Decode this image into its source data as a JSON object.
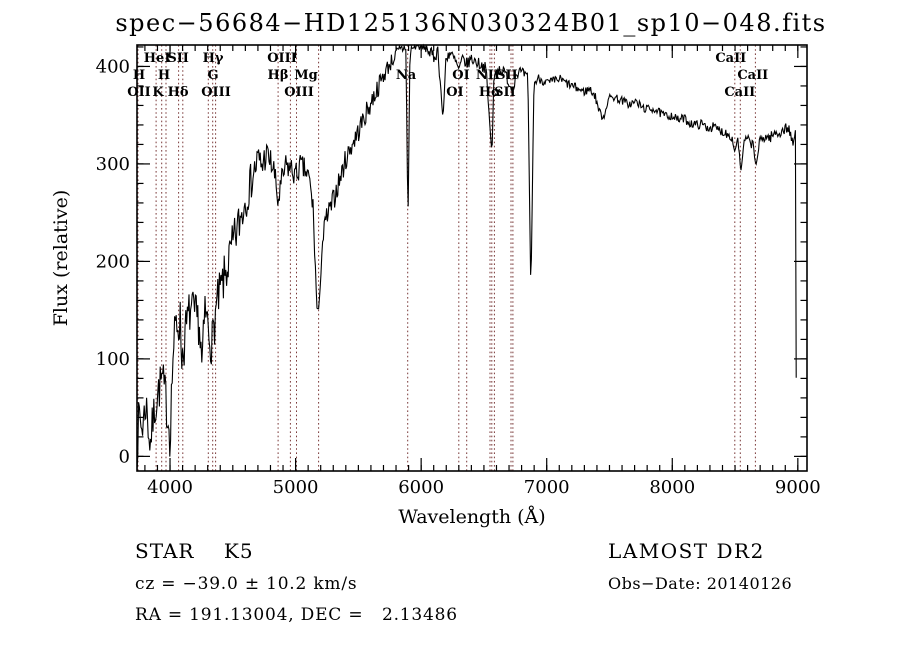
{
  "title": "spec−56684−HD125136N030324B01_sp10−048.fits",
  "annotations": {
    "class_line": "STAR    K5",
    "cz_line": "cz = −39.0 ± 10.2 km/s",
    "radec_line": "RA = 191.13004, DEC =   2.13486",
    "survey": "LAMOST DR2",
    "obsdate": "Obs−Date: 20140126"
  },
  "chart_data": {
    "type": "line",
    "title": "spec−56684−HD125136N030324B01_sp10−048.fits",
    "xlabel": "Wavelength (Å)",
    "ylabel": "Flux (relative)",
    "xlim": [
      3737,
      9073
    ],
    "ylim": [
      -15,
      422
    ],
    "x_major_ticks": [
      4000,
      5000,
      6000,
      7000,
      8000,
      9000
    ],
    "x_minor_step": 100,
    "y_major_ticks": [
      0,
      100,
      200,
      300,
      400
    ],
    "y_minor_step": 20,
    "grid": false,
    "legend": "none",
    "line_color": "#000000",
    "marker_color": "#7a3939",
    "spectral_line_markers": [
      3745,
      3889,
      3934,
      3968,
      4068,
      4102,
      4305,
      4340,
      4363,
      4861,
      4959,
      5007,
      5183,
      5893,
      6300,
      6363,
      6548,
      6563,
      6583,
      6716,
      6731,
      8498,
      8542,
      8662
    ],
    "spectral_line_labels": [
      {
        "text": "HeI",
        "row": 1,
        "wavelength": 3897
      },
      {
        "text": "SII",
        "row": 1,
        "wavelength": 4064
      },
      {
        "text": "Hγ",
        "row": 1,
        "wavelength": 4342
      },
      {
        "text": "OIII",
        "row": 1,
        "wavelength": 4892
      },
      {
        "text": "CaII",
        "row": 1,
        "wavelength": 8466
      },
      {
        "text": "H",
        "row": 2,
        "wavelength": 3753
      },
      {
        "text": "H",
        "row": 2,
        "wavelength": 3952
      },
      {
        "text": "G",
        "row": 2,
        "wavelength": 4342
      },
      {
        "text": "Hβ",
        "row": 2,
        "wavelength": 4860
      },
      {
        "text": "Mg",
        "row": 2,
        "wavelength": 5083
      },
      {
        "text": "Na",
        "row": 2,
        "wavelength": 5879
      },
      {
        "text": "OI",
        "row": 2,
        "wavelength": 6317
      },
      {
        "text": "NII",
        "row": 2,
        "wavelength": 6532
      },
      {
        "text": "SII",
        "row": 2,
        "wavelength": 6683
      },
      {
        "text": "CaII",
        "row": 2,
        "wavelength": 8641
      },
      {
        "text": "OII",
        "row": 3,
        "wavelength": 3753
      },
      {
        "text": "K",
        "row": 3,
        "wavelength": 3904
      },
      {
        "text": "Hδ",
        "row": 3,
        "wavelength": 4064
      },
      {
        "text": "OIII",
        "row": 3,
        "wavelength": 4366
      },
      {
        "text": "OIII",
        "row": 3,
        "wavelength": 5027
      },
      {
        "text": "OI",
        "row": 3,
        "wavelength": 6269
      },
      {
        "text": "Hα",
        "row": 3,
        "wavelength": 6548
      },
      {
        "text": "SII",
        "row": 3,
        "wavelength": 6667
      },
      {
        "text": "CaII",
        "row": 3,
        "wavelength": 8538
      }
    ],
    "spectrum_keypoints": [
      [
        3737,
        2
      ],
      [
        3753,
        45
      ],
      [
        3777,
        28
      ],
      [
        3809,
        55
      ],
      [
        3841,
        12
      ],
      [
        3873,
        45
      ],
      [
        3904,
        65
      ],
      [
        3936,
        80
      ],
      [
        3968,
        58
      ],
      [
        4000,
        22
      ],
      [
        4024,
        105
      ],
      [
        4048,
        135
      ],
      [
        4080,
        140
      ],
      [
        4096,
        100
      ],
      [
        4127,
        130
      ],
      [
        4159,
        150
      ],
      [
        4199,
        143
      ],
      [
        4231,
        138
      ],
      [
        4255,
        90
      ],
      [
        4279,
        150
      ],
      [
        4310,
        128
      ],
      [
        4334,
        115
      ],
      [
        4366,
        150
      ],
      [
        4398,
        168
      ],
      [
        4438,
        185
      ],
      [
        4478,
        205
      ],
      [
        4525,
        228
      ],
      [
        4573,
        250
      ],
      [
        4621,
        272
      ],
      [
        4669,
        292
      ],
      [
        4701,
        305
      ],
      [
        4732,
        298
      ],
      [
        4764,
        310
      ],
      [
        4796,
        303
      ],
      [
        4828,
        293
      ],
      [
        4860,
        260
      ],
      [
        4892,
        283
      ],
      [
        4924,
        298
      ],
      [
        4963,
        295
      ],
      [
        5003,
        288
      ],
      [
        5035,
        298
      ],
      [
        5075,
        293
      ],
      [
        5107,
        285
      ],
      [
        5139,
        255
      ],
      [
        5170,
        152
      ],
      [
        5186,
        150
      ],
      [
        5210,
        215
      ],
      [
        5242,
        243
      ],
      [
        5282,
        255
      ],
      [
        5322,
        272
      ],
      [
        5361,
        288
      ],
      [
        5401,
        305
      ],
      [
        5441,
        318
      ],
      [
        5489,
        330
      ],
      [
        5537,
        345
      ],
      [
        5584,
        358
      ],
      [
        5632,
        372
      ],
      [
        5680,
        385
      ],
      [
        5728,
        398
      ],
      [
        5768,
        406
      ],
      [
        5807,
        413
      ],
      [
        5847,
        418
      ],
      [
        5879,
        420
      ],
      [
        5895,
        235
      ],
      [
        5911,
        415
      ],
      [
        5943,
        421
      ],
      [
        5975,
        426
      ],
      [
        6006,
        418
      ],
      [
        6038,
        421
      ],
      [
        6070,
        414
      ],
      [
        6102,
        409
      ],
      [
        6134,
        417
      ],
      [
        6174,
        345
      ],
      [
        6198,
        410
      ],
      [
        6229,
        414
      ],
      [
        6269,
        406
      ],
      [
        6301,
        396
      ],
      [
        6333,
        408
      ],
      [
        6365,
        402
      ],
      [
        6397,
        408
      ],
      [
        6436,
        405
      ],
      [
        6476,
        402
      ],
      [
        6516,
        398
      ],
      [
        6548,
        338
      ],
      [
        6564,
        310
      ],
      [
        6580,
        390
      ],
      [
        6611,
        398
      ],
      [
        6643,
        396
      ],
      [
        6675,
        392
      ],
      [
        6707,
        380
      ],
      [
        6731,
        378
      ],
      [
        6755,
        392
      ],
      [
        6787,
        395
      ],
      [
        6818,
        392
      ],
      [
        6850,
        388
      ],
      [
        6874,
        165
      ],
      [
        6898,
        382
      ],
      [
        6938,
        388
      ],
      [
        6978,
        385
      ],
      [
        7018,
        383
      ],
      [
        7057,
        385
      ],
      [
        7105,
        387
      ],
      [
        7153,
        383
      ],
      [
        7201,
        380
      ],
      [
        7248,
        377
      ],
      [
        7296,
        374
      ],
      [
        7344,
        377
      ],
      [
        7384,
        370
      ],
      [
        7424,
        352
      ],
      [
        7455,
        348
      ],
      [
        7487,
        366
      ],
      [
        7527,
        369
      ],
      [
        7567,
        367
      ],
      [
        7615,
        364
      ],
      [
        7662,
        361
      ],
      [
        7710,
        364
      ],
      [
        7758,
        358
      ],
      [
        7806,
        356
      ],
      [
        7853,
        357
      ],
      [
        7901,
        352
      ],
      [
        7949,
        349
      ],
      [
        7997,
        350
      ],
      [
        8045,
        345
      ],
      [
        8092,
        347
      ],
      [
        8140,
        342
      ],
      [
        8188,
        340
      ],
      [
        8236,
        341
      ],
      [
        8283,
        337
      ],
      [
        8331,
        338
      ],
      [
        8379,
        334
      ],
      [
        8427,
        332
      ],
      [
        8474,
        328
      ],
      [
        8498,
        312
      ],
      [
        8522,
        328
      ],
      [
        8546,
        292
      ],
      [
        8578,
        326
      ],
      [
        8618,
        323
      ],
      [
        8642,
        320
      ],
      [
        8666,
        298
      ],
      [
        8697,
        323
      ],
      [
        8737,
        328
      ],
      [
        8777,
        327
      ],
      [
        8817,
        331
      ],
      [
        8857,
        332
      ],
      [
        8897,
        336
      ],
      [
        8929,
        337
      ],
      [
        8944,
        328
      ],
      [
        8960,
        318
      ],
      [
        8976,
        330
      ],
      [
        8981,
        335
      ],
      [
        8987,
        80
      ],
      [
        8993,
        4
      ]
    ],
    "noise_profile": [
      [
        3737,
        20
      ],
      [
        3900,
        22
      ],
      [
        4020,
        26
      ],
      [
        4300,
        24
      ],
      [
        4520,
        24
      ],
      [
        4830,
        14
      ],
      [
        5100,
        13
      ],
      [
        5300,
        12
      ],
      [
        5600,
        11
      ],
      [
        5850,
        7
      ],
      [
        6100,
        7
      ],
      [
        6500,
        6
      ],
      [
        6900,
        5
      ],
      [
        7400,
        4.5
      ],
      [
        8000,
        4.5
      ],
      [
        8500,
        5
      ],
      [
        8990,
        6
      ]
    ],
    "pinned_wavelengths": [
      5170,
      5186,
      5895,
      6174,
      6548,
      6564,
      6874,
      8498,
      8546,
      8666,
      8981,
      8987,
      8993
    ],
    "seed": 7
  }
}
